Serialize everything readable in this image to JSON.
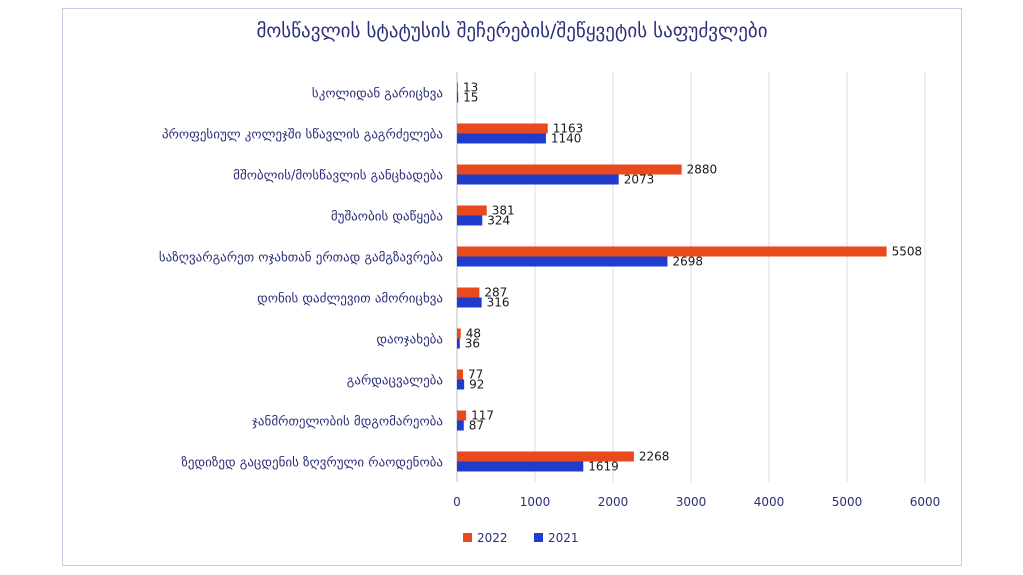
{
  "chart_data": {
    "type": "bar",
    "orientation": "horizontal",
    "title": "მოსწავლის სტატუსის შეჩერების/შეწყვეტის საფუძვლები",
    "categories": [
      "სკოლიდან გარიცხვა",
      "პროფესიულ კოლეჯში სწავლის გაგრძელება",
      "მშობლის/მოსწავლის განცხადება",
      "მუშაობის დაწყება",
      "საზღვარგარეთ ოჯახთან ერთად გამგზავრება",
      "დონის დაძლევით ამორიცხვა",
      "დაოჯახება",
      "გარდაცვალება",
      "ჯანმრთელობის მდგომარეობა",
      "ზედიზედ გაცდენის ზღვრული რაოდენობა"
    ],
    "series": [
      {
        "name": "2022",
        "color": "#e8491d",
        "values": [
          13,
          1163,
          2880,
          381,
          5508,
          287,
          48,
          77,
          117,
          2268
        ]
      },
      {
        "name": "2021",
        "color": "#1f3ccc",
        "values": [
          15,
          1140,
          2073,
          324,
          2698,
          316,
          36,
          92,
          87,
          1619
        ]
      }
    ],
    "xlim": [
      0,
      6000
    ],
    "xticks": [
      0,
      1000,
      2000,
      3000,
      4000,
      5000,
      6000
    ],
    "grid": true,
    "legend_position": "bottom"
  }
}
